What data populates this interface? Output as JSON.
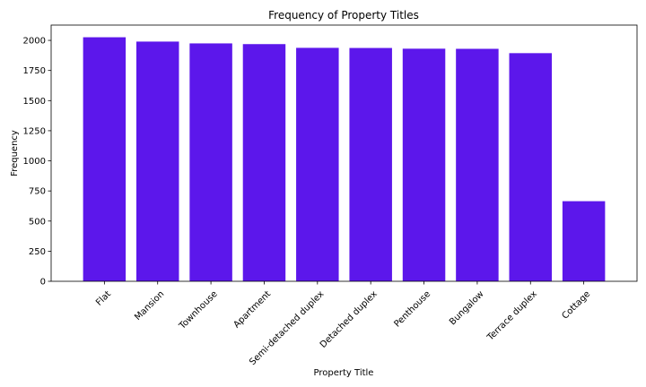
{
  "chart_data": {
    "type": "bar",
    "title": "Frequency of Property Titles",
    "xlabel": "Property Title",
    "ylabel": "Frequency",
    "categories": [
      "Flat",
      "Mansion",
      "Townhouse",
      "Apartment",
      "Semi-detached duplex",
      "Detached duplex",
      "Penthouse",
      "Bungalow",
      "Terrace duplex",
      "Cottage"
    ],
    "values": [
      2026,
      1990,
      1975,
      1969,
      1938,
      1937,
      1931,
      1930,
      1894,
      665
    ],
    "ylim": [
      0,
      2127
    ],
    "yticks": [
      0,
      250,
      500,
      750,
      1000,
      1250,
      1500,
      1750,
      2000
    ],
    "bar_color": "#5c17eb",
    "grid": false,
    "legend": "none"
  }
}
